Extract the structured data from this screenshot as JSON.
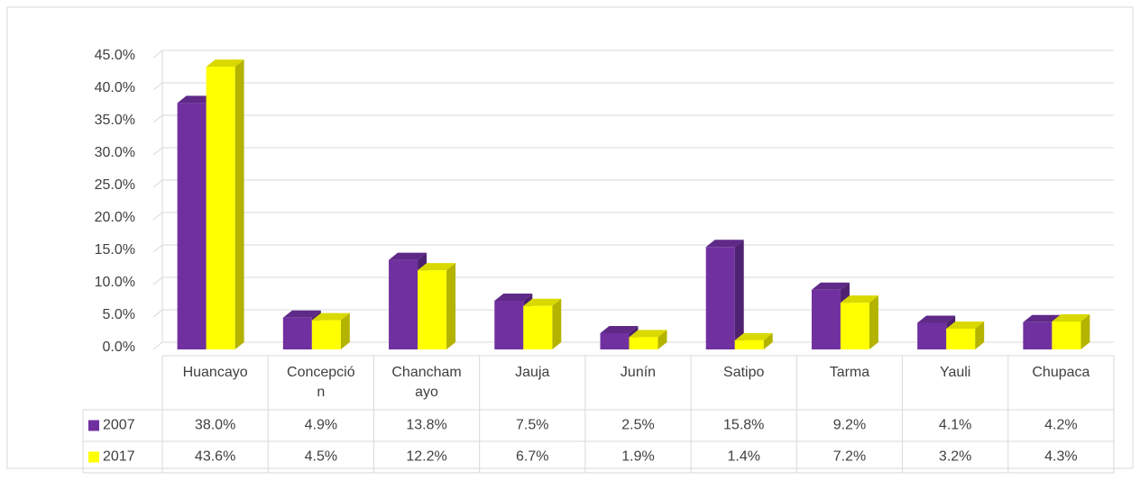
{
  "chart_data": {
    "type": "bar3d",
    "categories": [
      "Huancayo",
      "Concepción",
      "Chanchamayo",
      "Jauja",
      "Junín",
      "Satipo",
      "Tarma",
      "Yauli",
      "Chupaca"
    ],
    "series": [
      {
        "name": "2007",
        "color": "#7030a0",
        "values": [
          38.0,
          4.9,
          13.8,
          7.5,
          2.5,
          15.8,
          9.2,
          4.1,
          4.2
        ],
        "value_labels": [
          "38.0%",
          "4.9%",
          "13.8%",
          "7.5%",
          "2.5%",
          "15.8%",
          "9.2%",
          "4.1%",
          "4.2%"
        ]
      },
      {
        "name": "2017",
        "color": "#ffff00",
        "values": [
          43.6,
          4.5,
          12.2,
          6.7,
          1.9,
          1.4,
          7.2,
          3.2,
          4.3
        ],
        "value_labels": [
          "43.6%",
          "4.5%",
          "12.2%",
          "6.7%",
          "1.9%",
          "1.4%",
          "7.2%",
          "3.2%",
          "4.3%"
        ]
      }
    ],
    "ylim": [
      0,
      45
    ],
    "yticks": [
      {
        "value": 0,
        "label": "0.0%"
      },
      {
        "value": 5,
        "label": "5.0%"
      },
      {
        "value": 10,
        "label": "10.0%"
      },
      {
        "value": 15,
        "label": "15.0%"
      },
      {
        "value": 20,
        "label": "20.0%"
      },
      {
        "value": 25,
        "label": "25.0%"
      },
      {
        "value": 30,
        "label": "30.0%"
      },
      {
        "value": 35,
        "label": "35.0%"
      },
      {
        "value": 40,
        "label": "40.0%"
      },
      {
        "value": 45,
        "label": "45.0%"
      }
    ],
    "grid": true
  }
}
